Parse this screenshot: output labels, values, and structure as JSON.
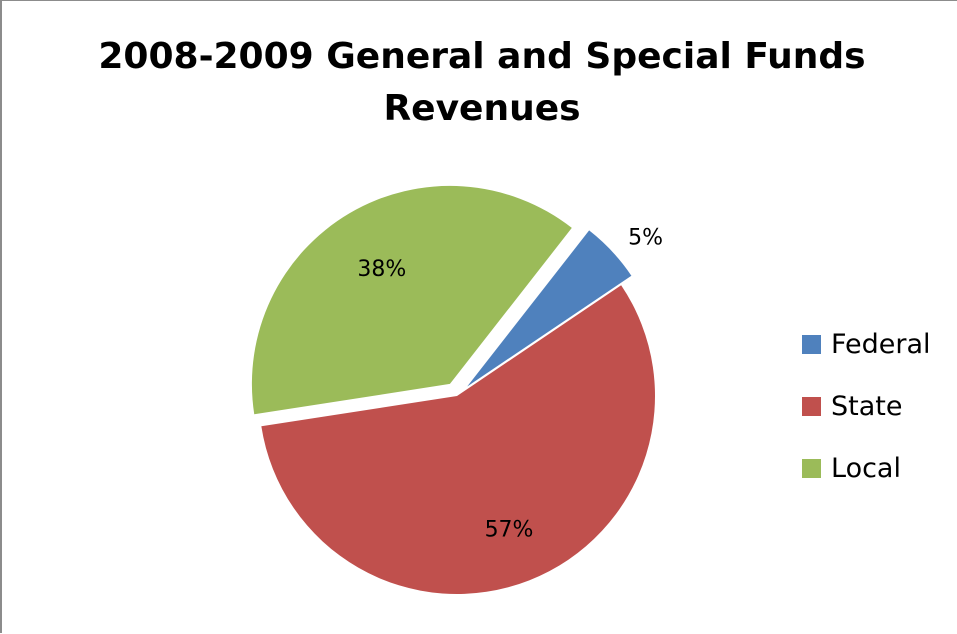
{
  "chart_data": {
    "type": "pie",
    "title": "2008-2009 General and Special Funds Revenues",
    "slices": [
      {
        "label": "Federal",
        "value": 5,
        "display": "5%",
        "color": "#4f81bd",
        "exploded": true
      },
      {
        "label": "State",
        "value": 57,
        "display": "57%",
        "color": "#c0504d",
        "exploded": false
      },
      {
        "label": "Local",
        "value": 38,
        "display": "38%",
        "color": "#9bbb59",
        "exploded": true
      }
    ],
    "legend_position": "right"
  }
}
